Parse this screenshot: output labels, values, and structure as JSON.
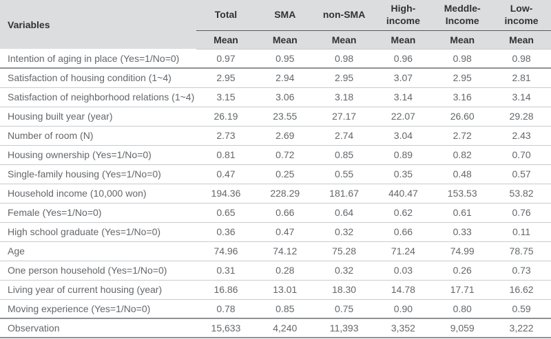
{
  "colors": {
    "header-bg": "#dcddde",
    "header-text": "#2f3235",
    "body-text": "#63666a",
    "light-rule": "#c7cacc",
    "heavy-rule": "#8e9194",
    "spanner-rule": "#55585b",
    "page-bg": "#ffffff"
  },
  "table": {
    "variables_header": "Variables",
    "mean_label": "Mean",
    "group_headers": [
      [
        "Total"
      ],
      [
        "SMA"
      ],
      [
        "non-SMA"
      ],
      [
        "High-",
        "income"
      ],
      [
        "Meddle-",
        "Income"
      ],
      [
        "Low-",
        "income"
      ]
    ],
    "rows": [
      {
        "label": "Intention of aging in place (Yes=1/No=0)",
        "values": [
          "0.97",
          "0.95",
          "0.98",
          "0.96",
          "0.98",
          "0.98"
        ]
      },
      {
        "label": "Satisfaction of housing condition (1~4)",
        "values": [
          "2.95",
          "2.94",
          "2.95",
          "3.07",
          "2.95",
          "2.81"
        ]
      },
      {
        "label": "Satisfaction of neighborhood relations (1~4)",
        "values": [
          "3.15",
          "3.06",
          "3.18",
          "3.14",
          "3.16",
          "3.14"
        ]
      },
      {
        "label": "Housing built year (year)",
        "values": [
          "26.19",
          "23.55",
          "27.17",
          "22.07",
          "26.60",
          "29.28"
        ]
      },
      {
        "label": "Number of room (N)",
        "values": [
          "2.73",
          "2.69",
          "2.74",
          "3.04",
          "2.72",
          "2.43"
        ]
      },
      {
        "label": "Housing ownership (Yes=1/No=0)",
        "values": [
          "0.81",
          "0.72",
          "0.85",
          "0.89",
          "0.82",
          "0.70"
        ]
      },
      {
        "label": "Single-family housing (Yes=1/No=0)",
        "values": [
          "0.47",
          "0.25",
          "0.55",
          "0.35",
          "0.48",
          "0.57"
        ]
      },
      {
        "label": "Household income (10,000 won)",
        "values": [
          "194.36",
          "228.29",
          "181.67",
          "440.47",
          "153.53",
          "53.82"
        ]
      },
      {
        "label": "Female (Yes=1/No=0)",
        "values": [
          "0.65",
          "0.66",
          "0.64",
          "0.62",
          "0.61",
          "0.76"
        ]
      },
      {
        "label": "High school graduate (Yes=1/No=0)",
        "values": [
          "0.36",
          "0.47",
          "0.32",
          "0.66",
          "0.33",
          "0.11"
        ]
      },
      {
        "label": "Age",
        "values": [
          "74.96",
          "74.12",
          "75.28",
          "71.24",
          "74.99",
          "78.75"
        ]
      },
      {
        "label": "One person household (Yes=1/No=0)",
        "values": [
          "0.31",
          "0.28",
          "0.32",
          "0.03",
          "0.26",
          "0.73"
        ]
      },
      {
        "label": "Living year of current housing (year)",
        "values": [
          "16.86",
          "13.01",
          "18.30",
          "14.78",
          "17.71",
          "16.62"
        ]
      },
      {
        "label": "Moving experience (Yes=1/No=0)",
        "values": [
          "0.78",
          "0.85",
          "0.75",
          "0.90",
          "0.80",
          "0.59"
        ]
      },
      {
        "label": "Observation",
        "values": [
          "15,633",
          "4,240",
          "11,393",
          "3,352",
          "9,059",
          "3,222"
        ]
      }
    ]
  }
}
